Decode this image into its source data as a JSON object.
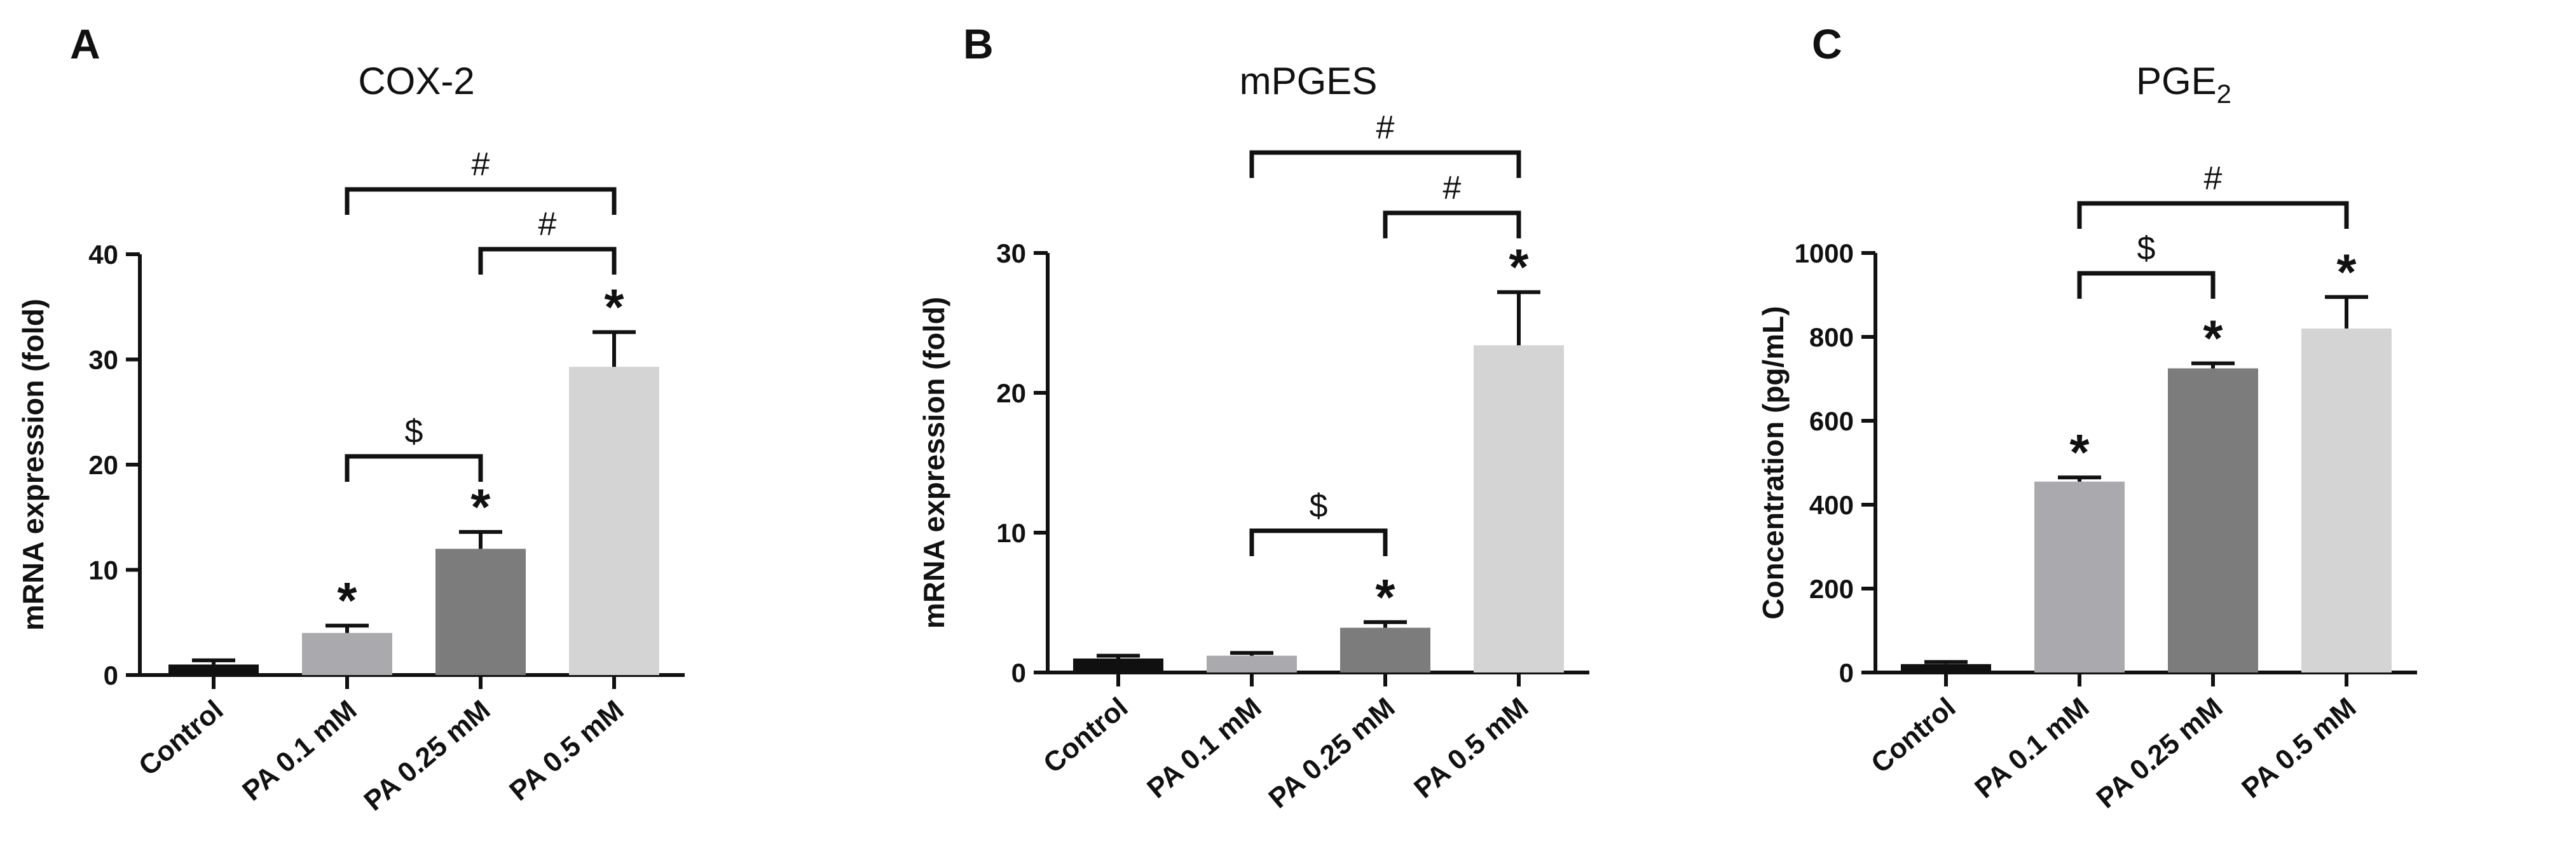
{
  "chart_data": [
    {
      "type": "bar",
      "panel_label": "A",
      "title": "COX-2",
      "title_subscript": "",
      "ylabel": "mRNA expression (fold)",
      "ylim": [
        0,
        40
      ],
      "yticks": [
        0,
        10,
        20,
        30,
        40
      ],
      "categories": [
        "Control",
        "PA 0.1 mM",
        "PA 0.25 mM",
        "PA 0.5 mM"
      ],
      "values": [
        1.0,
        4.0,
        12.0,
        29.3
      ],
      "errors": [
        0.4,
        0.7,
        1.6,
        3.3
      ],
      "bar_colors": [
        "#101010",
        "#aaaaae",
        "#7c7c7c",
        "#d4d4d4"
      ],
      "significance_stars": [
        "",
        "*",
        "*",
        "*"
      ],
      "comparisons": [
        {
          "from": 1,
          "to": 2,
          "symbol": "$"
        },
        {
          "from": 2,
          "to": 3,
          "symbol": "#"
        },
        {
          "from": 1,
          "to": 3,
          "symbol": "#"
        }
      ]
    },
    {
      "type": "bar",
      "panel_label": "B",
      "title": "mPGES",
      "title_subscript": "",
      "ylabel": "mRNA expression (fold)",
      "ylim": [
        0,
        30
      ],
      "yticks": [
        0,
        10,
        20,
        30
      ],
      "categories": [
        "Control",
        "PA 0.1 mM",
        "PA 0.25 mM",
        "PA 0.5 mM"
      ],
      "values": [
        1.0,
        1.2,
        3.2,
        23.4
      ],
      "errors": [
        0.2,
        0.2,
        0.4,
        3.8
      ],
      "bar_colors": [
        "#101010",
        "#aaaaae",
        "#7c7c7c",
        "#d4d4d4"
      ],
      "significance_stars": [
        "",
        "",
        "*",
        "*"
      ],
      "comparisons": [
        {
          "from": 1,
          "to": 2,
          "symbol": "$"
        },
        {
          "from": 2,
          "to": 3,
          "symbol": "#"
        },
        {
          "from": 1,
          "to": 3,
          "symbol": "#"
        }
      ]
    },
    {
      "type": "bar",
      "panel_label": "C",
      "title": "PGE",
      "title_subscript": "2",
      "ylabel": "Concentration (pg/mL)",
      "ylim": [
        0,
        1000
      ],
      "yticks": [
        0,
        200,
        400,
        600,
        800,
        1000
      ],
      "categories": [
        "Control",
        "PA 0.1 mM",
        "PA 0.25 mM",
        "PA 0.5 mM"
      ],
      "values": [
        20,
        455,
        725,
        820
      ],
      "errors": [
        5,
        10,
        12,
        75
      ],
      "bar_colors": [
        "#101010",
        "#aaaaae",
        "#7c7c7c",
        "#d4d4d4"
      ],
      "significance_stars": [
        "",
        "*",
        "*",
        "*"
      ],
      "comparisons": [
        {
          "from": 1,
          "to": 2,
          "symbol": "$"
        },
        {
          "from": 1,
          "to": 3,
          "symbol": "#"
        }
      ]
    }
  ]
}
